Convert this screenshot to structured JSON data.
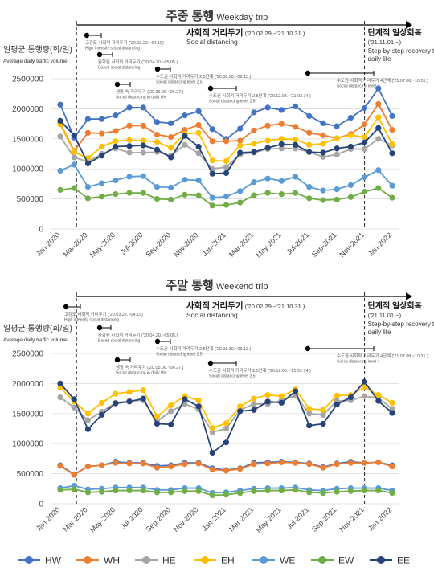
{
  "months": [
    "Jan-2020",
    "Feb-2020",
    "Mar-2020",
    "Apr-2020",
    "May-2020",
    "Jun-2020",
    "Jul-2020",
    "Aug-2020",
    "Sep-2020",
    "Oct-2020",
    "Nov-2020",
    "Dec-2020",
    "Jan-2021",
    "Feb-2021",
    "Mar-2021",
    "Apr-2021",
    "May-2021",
    "Jun-2021",
    "Jul-2021",
    "Aug-2021",
    "Sep-2021",
    "Oct-2021",
    "Nov-2021",
    "Dec-2021",
    "Jan-2022"
  ],
  "colors": {
    "HW": "#4472c4",
    "WH": "#ed7d31",
    "HE": "#a5a5a5",
    "EH": "#ffc000",
    "WE": "#5b9bd5",
    "EW": "#70ad47",
    "EE": "#264478"
  },
  "legend": [
    "HW",
    "WH",
    "HE",
    "EH",
    "WE",
    "EW",
    "EE"
  ],
  "chart_data": [
    {
      "type": "line",
      "title": "주중 통행",
      "subtitle": "Weekday trip",
      "ylabel": "일평균 통행량(회/일)",
      "ylabel_en": "Average daily traffic volume",
      "ylim": [
        0,
        2500000
      ],
      "yticks": [
        "0",
        "500000",
        "1000000",
        "1500000",
        "2000000",
        "2500000"
      ],
      "xticks": [
        "Jan-2020",
        "Mar-2020",
        "May-2020",
        "Jul-2020",
        "Sep-2020",
        "Nov-2020",
        "Jan-2021",
        "Mar-2021",
        "May-2021",
        "Jul-2021",
        "Sep-2021",
        "Nov-2021",
        "Jan-2022"
      ],
      "series": [
        {
          "name": "HW",
          "values": [
            2070000,
            1520000,
            1830000,
            1830000,
            1890000,
            2020000,
            2020000,
            1780000,
            1760000,
            1890000,
            1960000,
            1660000,
            1500000,
            1670000,
            1940000,
            2020000,
            1980000,
            2040000,
            1880000,
            1760000,
            1710000,
            1850000,
            2010000,
            2340000,
            1880000
          ]
        },
        {
          "name": "WH",
          "values": [
            1760000,
            1300000,
            1600000,
            1590000,
            1630000,
            1720000,
            1720000,
            1570000,
            1530000,
            1650000,
            1730000,
            1460000,
            1460000,
            1470000,
            1640000,
            1720000,
            1750000,
            1700000,
            1600000,
            1560000,
            1510000,
            1580000,
            1740000,
            2080000,
            1650000
          ]
        },
        {
          "name": "HE",
          "values": [
            1540000,
            1190000,
            1120000,
            1250000,
            1340000,
            1270000,
            1270000,
            1280000,
            1220000,
            1400000,
            1260000,
            1000000,
            1030000,
            1240000,
            1270000,
            1330000,
            1340000,
            1340000,
            1280000,
            1200000,
            1240000,
            1330000,
            1330000,
            1500000,
            1390000
          ]
        },
        {
          "name": "EH",
          "values": [
            1740000,
            1280000,
            1180000,
            1370000,
            1460000,
            1480000,
            1470000,
            1450000,
            1350000,
            1580000,
            1600000,
            1140000,
            1130000,
            1390000,
            1420000,
            1470000,
            1500000,
            1490000,
            1400000,
            1420000,
            1510000,
            1560000,
            1530000,
            1860000,
            1410000
          ]
        },
        {
          "name": "WE",
          "values": [
            970000,
            1070000,
            700000,
            760000,
            810000,
            870000,
            880000,
            700000,
            690000,
            820000,
            810000,
            520000,
            540000,
            630000,
            780000,
            840000,
            800000,
            870000,
            700000,
            640000,
            660000,
            730000,
            860000,
            980000,
            720000
          ]
        },
        {
          "name": "EW",
          "values": [
            650000,
            680000,
            510000,
            540000,
            580000,
            600000,
            600000,
            500000,
            490000,
            570000,
            560000,
            390000,
            400000,
            440000,
            560000,
            600000,
            580000,
            600000,
            510000,
            480000,
            490000,
            530000,
            620000,
            680000,
            520000
          ]
        },
        {
          "name": "EE",
          "values": [
            1800000,
            1560000,
            1090000,
            1220000,
            1370000,
            1380000,
            1390000,
            1320000,
            1190000,
            1550000,
            1370000,
            920000,
            930000,
            1270000,
            1280000,
            1350000,
            1410000,
            1400000,
            1280000,
            1270000,
            1340000,
            1370000,
            1440000,
            1680000,
            1260000
          ]
        }
      ],
      "annotations": [
        {
          "ko": "사회적 거리두기",
          "period": "('20.02.29.~'21.10.31.)",
          "en": "Social distancing"
        },
        {
          "ko": "단계적 일상회복",
          "period": "('21.11.01.~)",
          "en": "Step-by-step recovery to daily life"
        },
        {
          "text": "고강도 사회적 거리두기 ('20.03.22.~04.19)",
          "en": "High intensity social distancing"
        },
        {
          "text": "완화된 사회적 거리두기 ('20.04.20.~05.05.)",
          "en": "Eased social distancing"
        },
        {
          "text": "생활 속 거리두기 ('20.05.06.~06.27.)",
          "en": "Social distancing in daily life"
        },
        {
          "text": "수도권 사회적 거리두기 2.5단계 ('20.08.30.~09.13.)",
          "en": "Social distancing level 2.5"
        },
        {
          "text": "수도권 사회적 거리두기 2.5단계 ('20.12.08.~'21.02.14.)",
          "en": "Social distancing level 2.5"
        },
        {
          "text": "수도권 사회적 거리두기 4단계 ('21.07.08.~10.31.)",
          "en": "Social distancing level 4"
        }
      ]
    },
    {
      "type": "line",
      "title": "주말 통행",
      "subtitle": "Weekend trip",
      "ylabel": "일평균 통행량(회/일)",
      "ylabel_en": "Average daily traffic volume",
      "ylim": [
        0,
        2500000
      ],
      "yticks": [
        "0",
        "500000",
        "1000000",
        "1500000",
        "2000000",
        "2500000"
      ],
      "xticks": [
        "Jan-2020",
        "Mar-2020",
        "May-2020",
        "Jul-2020",
        "Sep-2020",
        "Nov-2020",
        "Jan-2021",
        "Mar-2021",
        "May-2021",
        "Jul-2021",
        "Sep-2021",
        "Nov-2021",
        "Jan-2022"
      ],
      "series": [
        {
          "name": "HW",
          "values": [
            640000,
            490000,
            620000,
            640000,
            700000,
            680000,
            680000,
            630000,
            640000,
            680000,
            680000,
            590000,
            560000,
            590000,
            680000,
            690000,
            700000,
            690000,
            670000,
            610000,
            670000,
            700000,
            680000,
            690000,
            640000
          ]
        },
        {
          "name": "WH",
          "values": [
            630000,
            480000,
            620000,
            640000,
            680000,
            670000,
            670000,
            600000,
            620000,
            660000,
            670000,
            570000,
            550000,
            580000,
            660000,
            670000,
            690000,
            680000,
            660000,
            600000,
            660000,
            680000,
            680000,
            690000,
            620000
          ]
        },
        {
          "name": "HE",
          "values": [
            1770000,
            1600000,
            1390000,
            1530000,
            1680000,
            1710000,
            1720000,
            1370000,
            1540000,
            1660000,
            1570000,
            1190000,
            1250000,
            1560000,
            1660000,
            1660000,
            1720000,
            1800000,
            1500000,
            1480000,
            1710000,
            1720000,
            1790000,
            1760000,
            1580000
          ]
        },
        {
          "name": "EH",
          "values": [
            1930000,
            1700000,
            1500000,
            1680000,
            1830000,
            1860000,
            1890000,
            1450000,
            1640000,
            1790000,
            1720000,
            1260000,
            1340000,
            1620000,
            1750000,
            1810000,
            1790000,
            1900000,
            1580000,
            1560000,
            1800000,
            1810000,
            1940000,
            1810000,
            1680000
          ]
        },
        {
          "name": "WE",
          "values": [
            260000,
            300000,
            240000,
            250000,
            270000,
            270000,
            270000,
            230000,
            230000,
            260000,
            260000,
            180000,
            190000,
            220000,
            250000,
            260000,
            260000,
            270000,
            230000,
            220000,
            250000,
            260000,
            260000,
            260000,
            220000
          ]
        },
        {
          "name": "EW",
          "values": [
            230000,
            240000,
            190000,
            200000,
            220000,
            220000,
            220000,
            190000,
            190000,
            210000,
            210000,
            140000,
            150000,
            180000,
            210000,
            220000,
            220000,
            230000,
            190000,
            180000,
            200000,
            210000,
            220000,
            220000,
            180000
          ]
        },
        {
          "name": "EE",
          "values": [
            2000000,
            1740000,
            1240000,
            1480000,
            1670000,
            1700000,
            1750000,
            1330000,
            1320000,
            1740000,
            1620000,
            850000,
            1020000,
            1540000,
            1560000,
            1700000,
            1680000,
            1870000,
            1300000,
            1330000,
            1650000,
            1770000,
            2030000,
            1710000,
            1510000
          ]
        }
      ],
      "annotations": [
        {
          "ko": "사회적 거리두기",
          "period": "('20.02.29.~'21.10.31.)",
          "en": "Social distancing"
        },
        {
          "ko": "단계적 일상회복",
          "period": "('21.11.01.~)",
          "en": "Step-by-step recovery to daily life"
        },
        {
          "text": "고강도 사회적 거리두기 ('20.03.22.~04.19)",
          "en": "High intensity social distancing"
        },
        {
          "text": "완화된 사회적 거리두기 ('20.04.20.~05.05.)",
          "en": "Eased social distancing"
        },
        {
          "text": "생활 속 거리두기 ('20.05.06.~06.27.)",
          "en": "Social distancing in daily life"
        },
        {
          "text": "수도권 사회적 거리두기 2.5단계 ('20.08.30.~09.13.)",
          "en": "Social distancing level 2.5"
        },
        {
          "text": "수도권 사회적 거리두기 2.5단계 ('20.12.08.~'21.02.14.)",
          "en": "Social distancing level 2.5"
        },
        {
          "text": "수도권 사회적 거리두기 4단계 ('21.07.08.~10.31.)",
          "en": "Social distancing level 4"
        }
      ]
    }
  ]
}
